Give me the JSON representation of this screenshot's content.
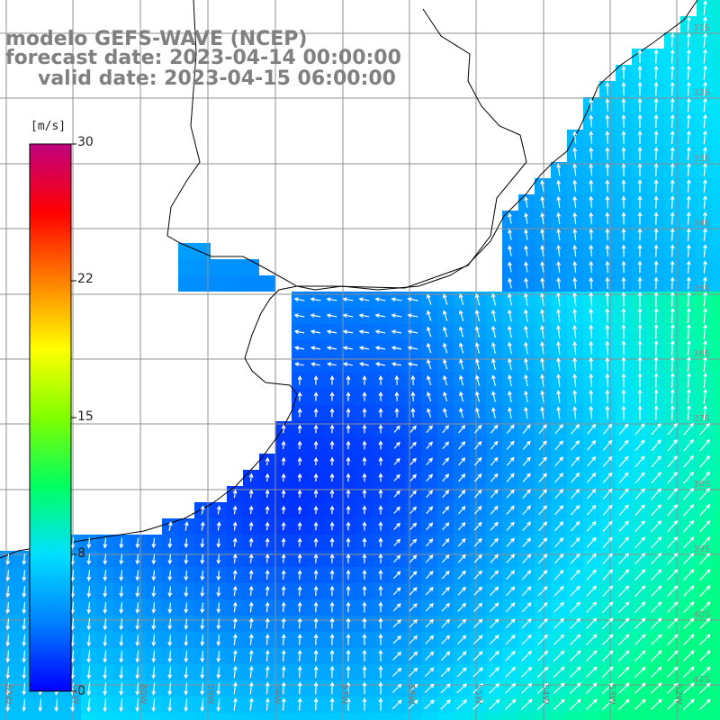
{
  "title": {
    "line1": "modelo GEFS-WAVE (NCEP)",
    "line2": "forecast date: 2023-04-14 00:00:00",
    "line3": "valid date: 2023-04-15 06:00:00"
  },
  "colorbar": {
    "unit": "[m/s]",
    "ticks": [
      {
        "label": "30",
        "value": 30
      },
      {
        "label": "22",
        "value": 22
      },
      {
        "label": "15",
        "value": 15
      },
      {
        "label": "8",
        "value": 8
      },
      {
        "label": "0",
        "value": 0
      }
    ],
    "colors": [
      "#0000ff",
      "#0080ff",
      "#00e0ff",
      "#00ff60",
      "#80ff00",
      "#ffff00",
      "#ff8000",
      "#ff0000",
      "#c00080"
    ]
  },
  "axes": {
    "lat_labels": [
      "31S",
      "32S",
      "33S",
      "34S",
      "35S",
      "36S",
      "37S",
      "38S",
      "39S",
      "40S",
      "41S"
    ],
    "lon_labels": [
      "62W",
      "61W",
      "60W",
      "59W",
      "58W",
      "57W",
      "56W",
      "55W",
      "54W",
      "53W",
      "52W"
    ]
  },
  "colors": {
    "land": "#ffffff",
    "coast": "#000000",
    "grid": "#909090",
    "arrow": "#ffffff"
  }
}
